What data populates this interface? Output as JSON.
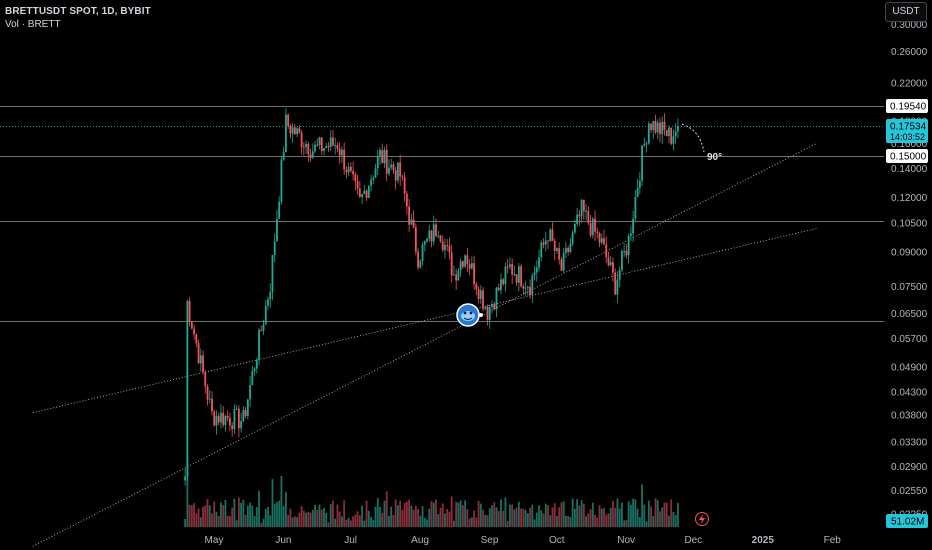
{
  "header": {
    "symbol_line": "BRETTUSDT SPOT, 1D, BYBIT",
    "volume_line": "Vol · BRETT"
  },
  "toolbar": {
    "currency_button": "USDT"
  },
  "annotations": {
    "angle_label": "90°"
  },
  "colors": {
    "up": "#22ab94",
    "down": "#f7525f",
    "up_volume": "#1b6f63",
    "down_volume": "#8a2f3b",
    "last_price_tag": "#26c6da",
    "level_line": "#c8c8c8",
    "background": "#000000",
    "axis_text": "#b2b5be"
  },
  "chart_data": {
    "type": "candlestick",
    "scale": "log",
    "y_ticks": [
      0.3,
      0.26,
      0.22,
      0.18,
      0.16,
      0.14,
      0.12,
      0.105,
      0.09,
      0.075,
      0.065,
      0.057,
      0.049,
      0.043,
      0.038,
      0.033,
      0.029,
      0.0255,
      0.0225
    ],
    "y_tick_labels": [
      "0.30000",
      "0.26000",
      "0.22000",
      "0.18000",
      "0.16000",
      "0.14000",
      "0.12000",
      "0.10500",
      "0.09000",
      "0.07500",
      "0.06500",
      "0.05700",
      "0.04900",
      "0.04300",
      "0.03800",
      "0.03300",
      "0.02900",
      "0.02550",
      "0.02250"
    ],
    "x_labels": [
      "May",
      "Jun",
      "Jul",
      "Aug",
      "Sep",
      "Oct",
      "Nov",
      "Dec",
      "2025",
      "Feb"
    ],
    "x_label_days": [
      0,
      31,
      61,
      92,
      123,
      153,
      184,
      214,
      245,
      276
    ],
    "price_tags": [
      {
        "label": "0.19540",
        "value": 0.1954,
        "style": "white"
      },
      {
        "label": "0.15000",
        "value": 0.15,
        "style": "white"
      }
    ],
    "last_price": {
      "label": "0.17534",
      "value": 0.17534,
      "countdown": "14:03:52"
    },
    "volume_tag": "51.02M",
    "horizontal_levels": [
      0.1954,
      0.15,
      0.106,
      0.0625
    ],
    "trend_lines": [
      {
        "from": {
          "day": -80,
          "price": 0.019
        },
        "to": {
          "day": 270,
          "price": 0.16
        }
      },
      {
        "from": {
          "day": -80,
          "price": 0.0385
        },
        "to": {
          "day": 270,
          "price": 0.102
        }
      }
    ],
    "anchors": [
      {
        "day": -12,
        "price": 0.0275
      },
      {
        "day": -11,
        "price": 0.069
      },
      {
        "day": 0,
        "price": 0.038
      },
      {
        "day": 14,
        "price": 0.037
      },
      {
        "day": 26,
        "price": 0.076
      },
      {
        "day": 33,
        "price": 0.178
      },
      {
        "day": 45,
        "price": 0.155
      },
      {
        "day": 56,
        "price": 0.16
      },
      {
        "day": 66,
        "price": 0.117
      },
      {
        "day": 75,
        "price": 0.15
      },
      {
        "day": 84,
        "price": 0.135
      },
      {
        "day": 92,
        "price": 0.088
      },
      {
        "day": 101,
        "price": 0.104
      },
      {
        "day": 108,
        "price": 0.08
      },
      {
        "day": 113,
        "price": 0.09
      },
      {
        "day": 123,
        "price": 0.066
      },
      {
        "day": 133,
        "price": 0.083
      },
      {
        "day": 142,
        "price": 0.076
      },
      {
        "day": 150,
        "price": 0.1
      },
      {
        "day": 156,
        "price": 0.082
      },
      {
        "day": 165,
        "price": 0.112
      },
      {
        "day": 174,
        "price": 0.094
      },
      {
        "day": 180,
        "price": 0.076
      },
      {
        "day": 186,
        "price": 0.096
      },
      {
        "day": 192,
        "price": 0.15
      },
      {
        "day": 195,
        "price": 0.18
      },
      {
        "day": 200,
        "price": 0.172
      },
      {
        "day": 205,
        "price": 0.166
      },
      {
        "day": 208,
        "price": 0.1753
      }
    ]
  }
}
